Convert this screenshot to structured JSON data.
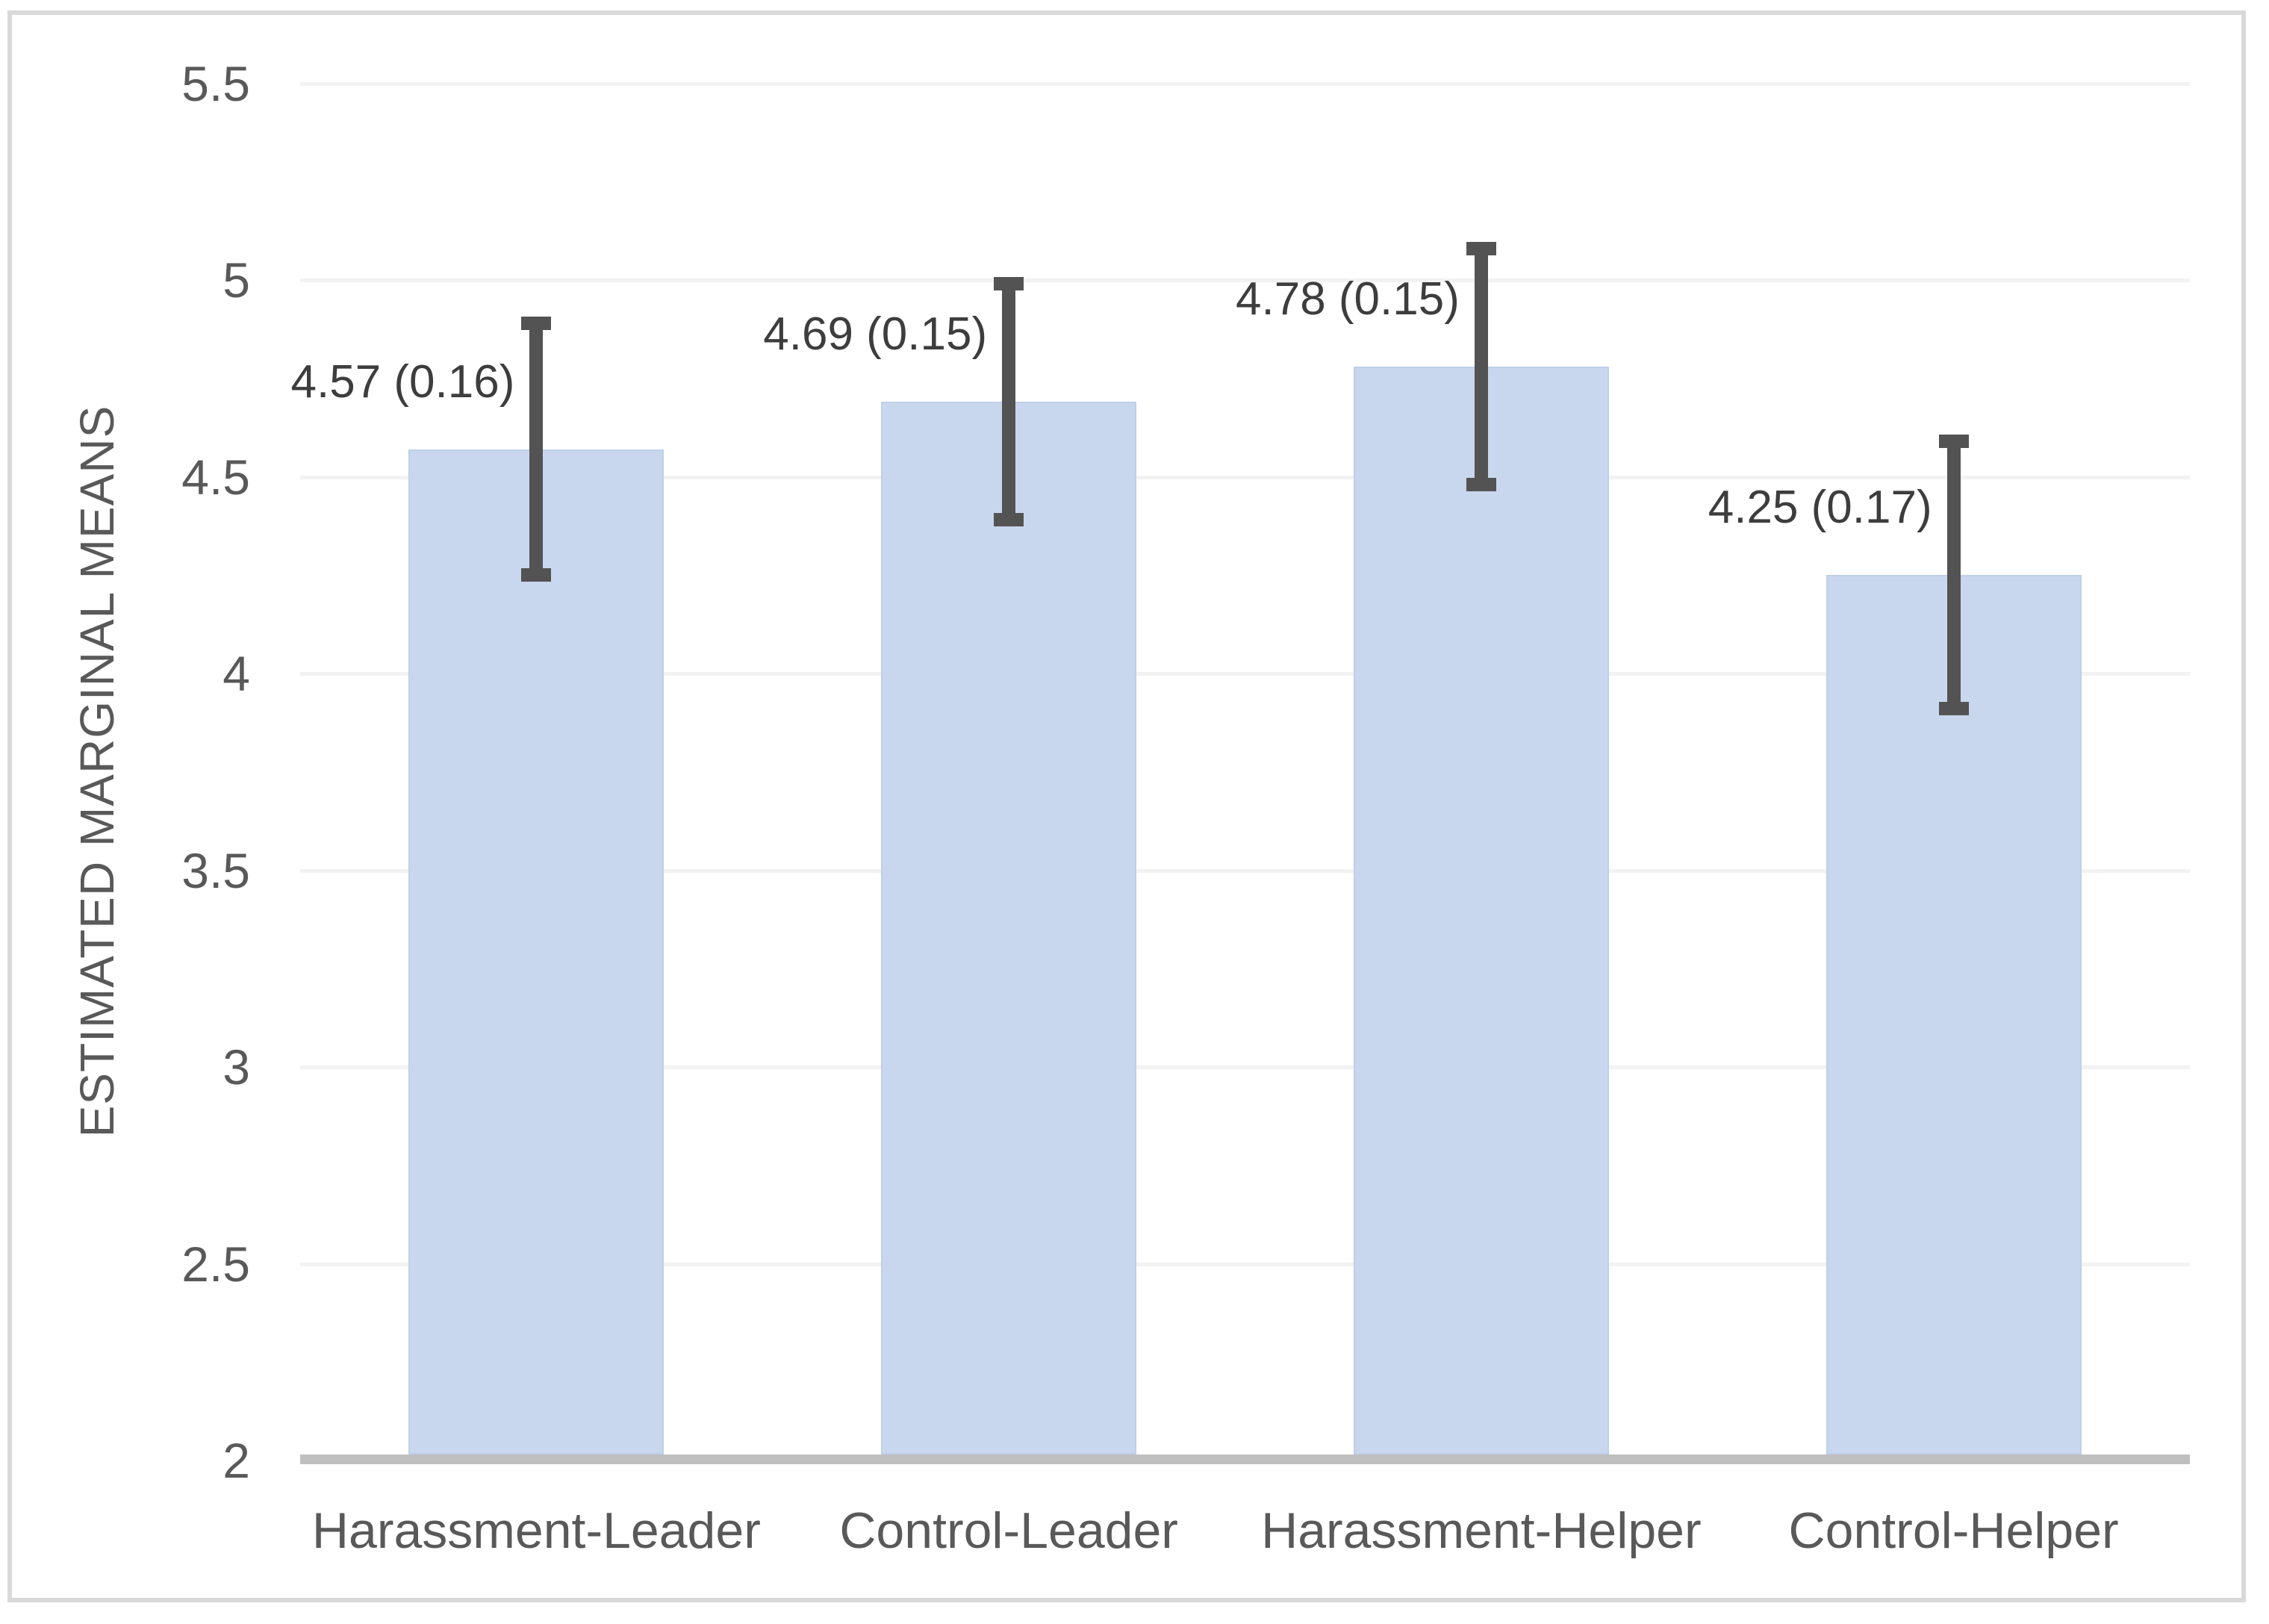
{
  "chart_data": {
    "type": "bar",
    "title": "",
    "xlabel": "",
    "ylabel": "ESTIMATED MARGINAL MEANS",
    "categories": [
      "Harassment-Leader",
      "Control-Leader",
      "Harassment-Helper",
      "Control-Helper"
    ],
    "values": [
      4.57,
      4.69,
      4.78,
      4.25
    ],
    "standard_errors": [
      0.16,
      0.15,
      0.15,
      0.17
    ],
    "bar_labels": [
      "4.57 (0.16)",
      "4.69 (0.15)",
      "4.78 (0.15)",
      "4.25 (0.17)"
    ],
    "error_bars": {
      "low": [
        4.25,
        4.39,
        4.48,
        3.91
      ],
      "high": [
        4.89,
        4.99,
        5.08,
        4.59
      ]
    },
    "ylim": [
      2,
      5.5
    ],
    "yticks": [
      {
        "label": "5.5",
        "value": 5.5
      },
      {
        "label": "5",
        "value": 5.0
      },
      {
        "label": "4.5",
        "value": 4.5
      },
      {
        "label": "4",
        "value": 4.0
      },
      {
        "label": "3.5",
        "value": 3.5
      },
      {
        "label": "3",
        "value": 3.0
      },
      {
        "label": "2.5",
        "value": 2.5
      },
      {
        "label": "2",
        "value": 2.0
      }
    ],
    "grid": true,
    "legend": false,
    "colors": {
      "bar_fill": "#c9d7ee",
      "bar_border": "#bfcfe9",
      "error_bar": "#535353",
      "gridline": "#f2f2f2",
      "axis_line": "#bfbfbf",
      "tick_text": "#595959",
      "bar_label_text": "#3d3d3d",
      "frame_border": "#d9d9d9",
      "background": "#ffffff"
    }
  }
}
